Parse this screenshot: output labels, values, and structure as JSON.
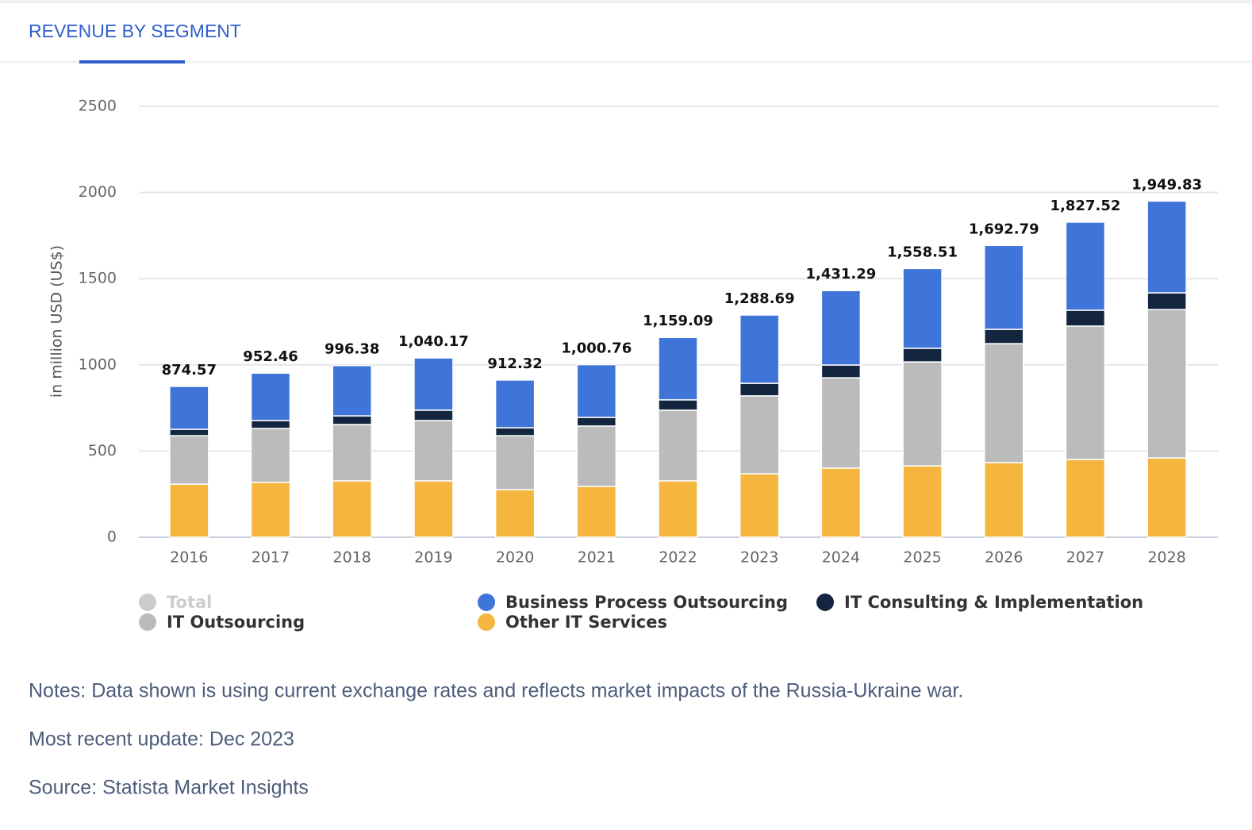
{
  "tab_title": "REVENUE BY SEGMENT",
  "chart_data": {
    "type": "stacked_bar",
    "y_axis_label": "in million USD (US$)",
    "categories": [
      "2016",
      "2017",
      "2018",
      "2019",
      "2020",
      "2021",
      "2022",
      "2023",
      "2024",
      "2025",
      "2026",
      "2027",
      "2028"
    ],
    "ylim": [
      0,
      2500
    ],
    "yticks": [
      0,
      500,
      1000,
      1500,
      2000,
      2500
    ],
    "grid": true,
    "series": [
      {
        "name": "Total",
        "color": "#cccccc",
        "hidden": true,
        "values": [
          874.57,
          952.46,
          996.38,
          1040.17,
          912.32,
          1000.76,
          1159.09,
          1288.69,
          1431.29,
          1558.51,
          1692.79,
          1827.52,
          1949.83
        ],
        "value_labels": [
          "874.57",
          "952.46",
          "996.38",
          "1,040.17",
          "912.32",
          "1,000.76",
          "1,159.09",
          "1,288.69",
          "1,431.29",
          "1,558.51",
          "1,692.79",
          "1,827.52",
          "1,949.83"
        ]
      },
      {
        "name": "Business Process Outsourcing",
        "color": "#3f74d9",
        "values": [
          249,
          275,
          292,
          303,
          277,
          306,
          362,
          396,
          432,
          463,
          487,
          511,
          532
        ]
      },
      {
        "name": "IT Consulting & Implementation",
        "color": "#14253f",
        "values": [
          37,
          46,
          50,
          60,
          46,
          50,
          60,
          73,
          74,
          79,
          83,
          92,
          97
        ]
      },
      {
        "name": "IT Outsourcing",
        "color": "#bbbbbb",
        "values": [
          281,
          313,
          327,
          350,
          313,
          350,
          410,
          452,
          524,
          603,
          690,
          774,
          861
        ]
      },
      {
        "name": "Other IT Services",
        "color": "#f4b63f",
        "values": [
          308,
          318,
          327,
          327,
          276,
          295,
          327,
          368,
          401,
          414,
          433,
          451,
          460
        ]
      }
    ]
  },
  "notes": [
    "Notes: Data shown is using current exchange rates and reflects market impacts of the Russia-Ukraine war.",
    "Most recent update: Dec 2023",
    "Source: Statista Market Insights"
  ]
}
